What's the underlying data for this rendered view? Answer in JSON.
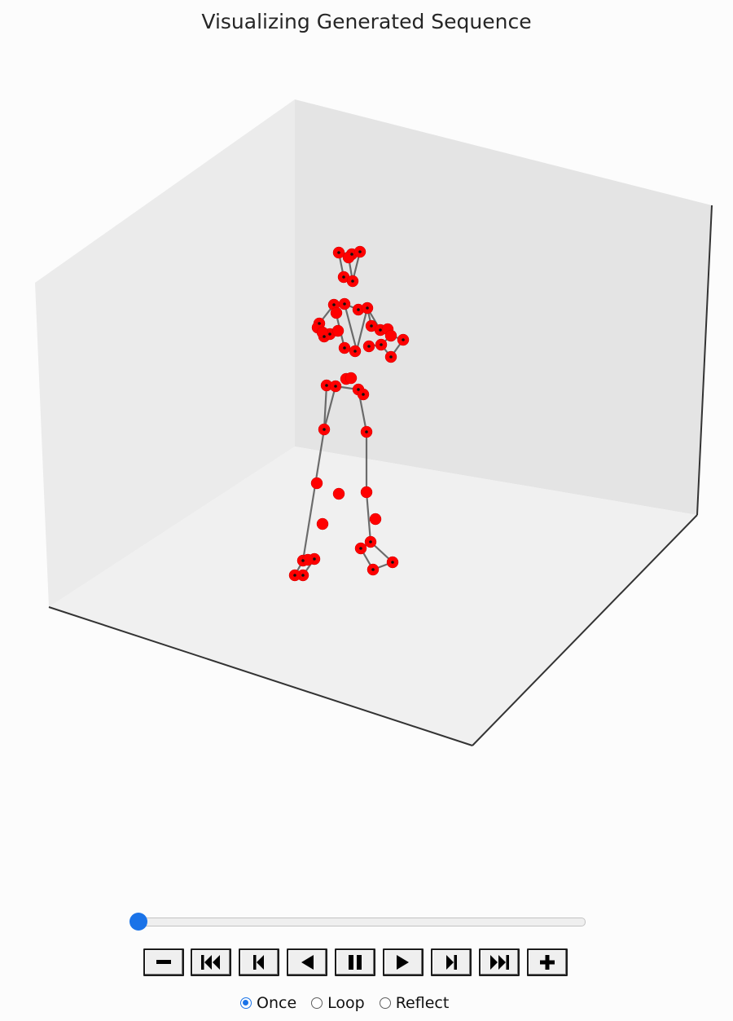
{
  "figure": {
    "title": "Visualizing Generated Sequence",
    "background": "#fcfcfc",
    "pane_color": "#e9e9e9",
    "joint_color": "#ff0000",
    "bone_color": "#333333"
  },
  "player": {
    "frame_position": 0,
    "buttons": [
      {
        "name": "decrease-speed-button",
        "icon": "minus-icon"
      },
      {
        "name": "first-frame-button",
        "icon": "skip-to-start-icon"
      },
      {
        "name": "previous-frame-button",
        "icon": "step-back-icon"
      },
      {
        "name": "play-reverse-button",
        "icon": "play-reverse-icon"
      },
      {
        "name": "pause-button",
        "icon": "pause-icon"
      },
      {
        "name": "play-button",
        "icon": "play-icon"
      },
      {
        "name": "next-frame-button",
        "icon": "step-forward-icon"
      },
      {
        "name": "last-frame-button",
        "icon": "skip-to-end-icon"
      },
      {
        "name": "increase-speed-button",
        "icon": "plus-icon"
      }
    ],
    "modes": [
      {
        "label": "Once",
        "checked": true
      },
      {
        "label": "Loop",
        "checked": false
      },
      {
        "label": "Reflect",
        "checked": false
      }
    ],
    "accent_color": "#1a73e8"
  }
}
